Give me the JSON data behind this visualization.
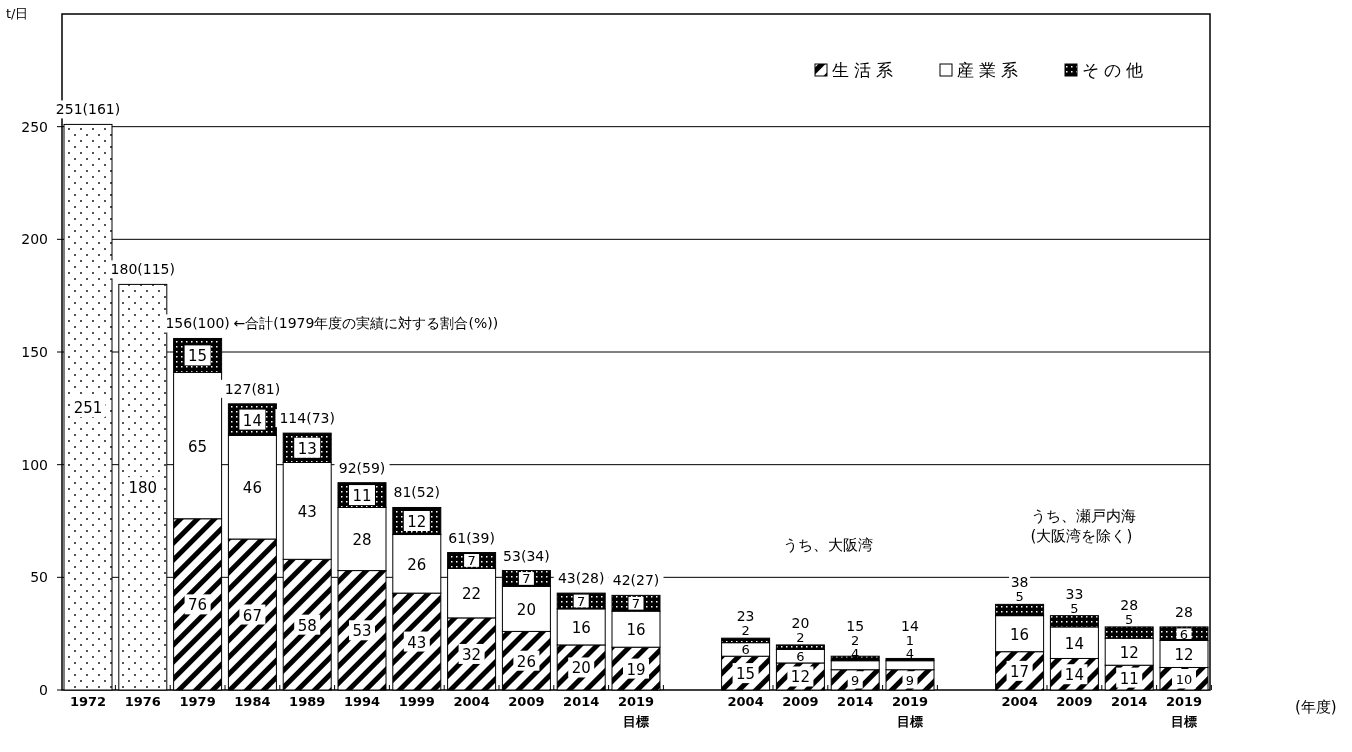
{
  "chart_data": {
    "type": "bar",
    "stacked": true,
    "ylabel": "t/日",
    "categories": [
      "1972",
      "1976",
      "1979",
      "1984",
      "1989",
      "1994",
      "1999",
      "2004",
      "2009",
      "2014",
      "2019\n目標",
      null,
      "2004",
      "2009",
      "2014",
      "2019\n目標",
      null,
      "2004",
      "2009",
      "2014",
      "2019\n目標"
    ],
    "series": [
      {
        "name": "生活系",
        "color": "#000000",
        "values": [
          null,
          null,
          76,
          67,
          58,
          53,
          43,
          32,
          26,
          20,
          19,
          null,
          15,
          12,
          9,
          9,
          null,
          17,
          14,
          11,
          10
        ]
      },
      {
        "name": "産業系",
        "color": "#ffffff",
        "values": [
          null,
          null,
          65,
          46,
          43,
          28,
          26,
          22,
          20,
          16,
          16,
          null,
          6,
          6,
          4,
          4,
          null,
          16,
          14,
          12,
          12
        ]
      },
      {
        "name": "その他",
        "color": "#000000",
        "values": [
          null,
          null,
          15,
          14,
          13,
          11,
          12,
          7,
          7,
          7,
          7,
          null,
          2,
          2,
          2,
          1,
          null,
          5,
          5,
          5,
          6
        ]
      },
      {
        "color": "#000000",
        "values": [
          251,
          180,
          null,
          null,
          null,
          null,
          null,
          null,
          null,
          null,
          null,
          null,
          null,
          null,
          null,
          null,
          null,
          null,
          null,
          null,
          null
        ]
      }
    ],
    "totals": [
      "251(161)",
      "180(115)",
      "156(100)",
      "127(81)",
      "114(73)",
      "92(59)",
      "81(52)",
      "61(39)",
      "53(34)",
      "43(28)",
      "42(27)",
      null,
      "23",
      "20",
      "15",
      "14",
      null,
      "38",
      "33",
      "28",
      "28"
    ],
    "data_labels": true,
    "annotations": [
      {
        "text": "←合計(1979年度の実績に対する割合(%))",
        "x": "1979",
        "y": 156
      },
      "うち、大阪湾",
      "うち、瀬戸内海",
      "(大阪湾を除く)",
      "(年度)"
    ],
    "ylim": [
      0,
      300
    ],
    "yticks": [
      0,
      50,
      100,
      150,
      200,
      250
    ],
    "grid": "y",
    "legend": "top right"
  }
}
